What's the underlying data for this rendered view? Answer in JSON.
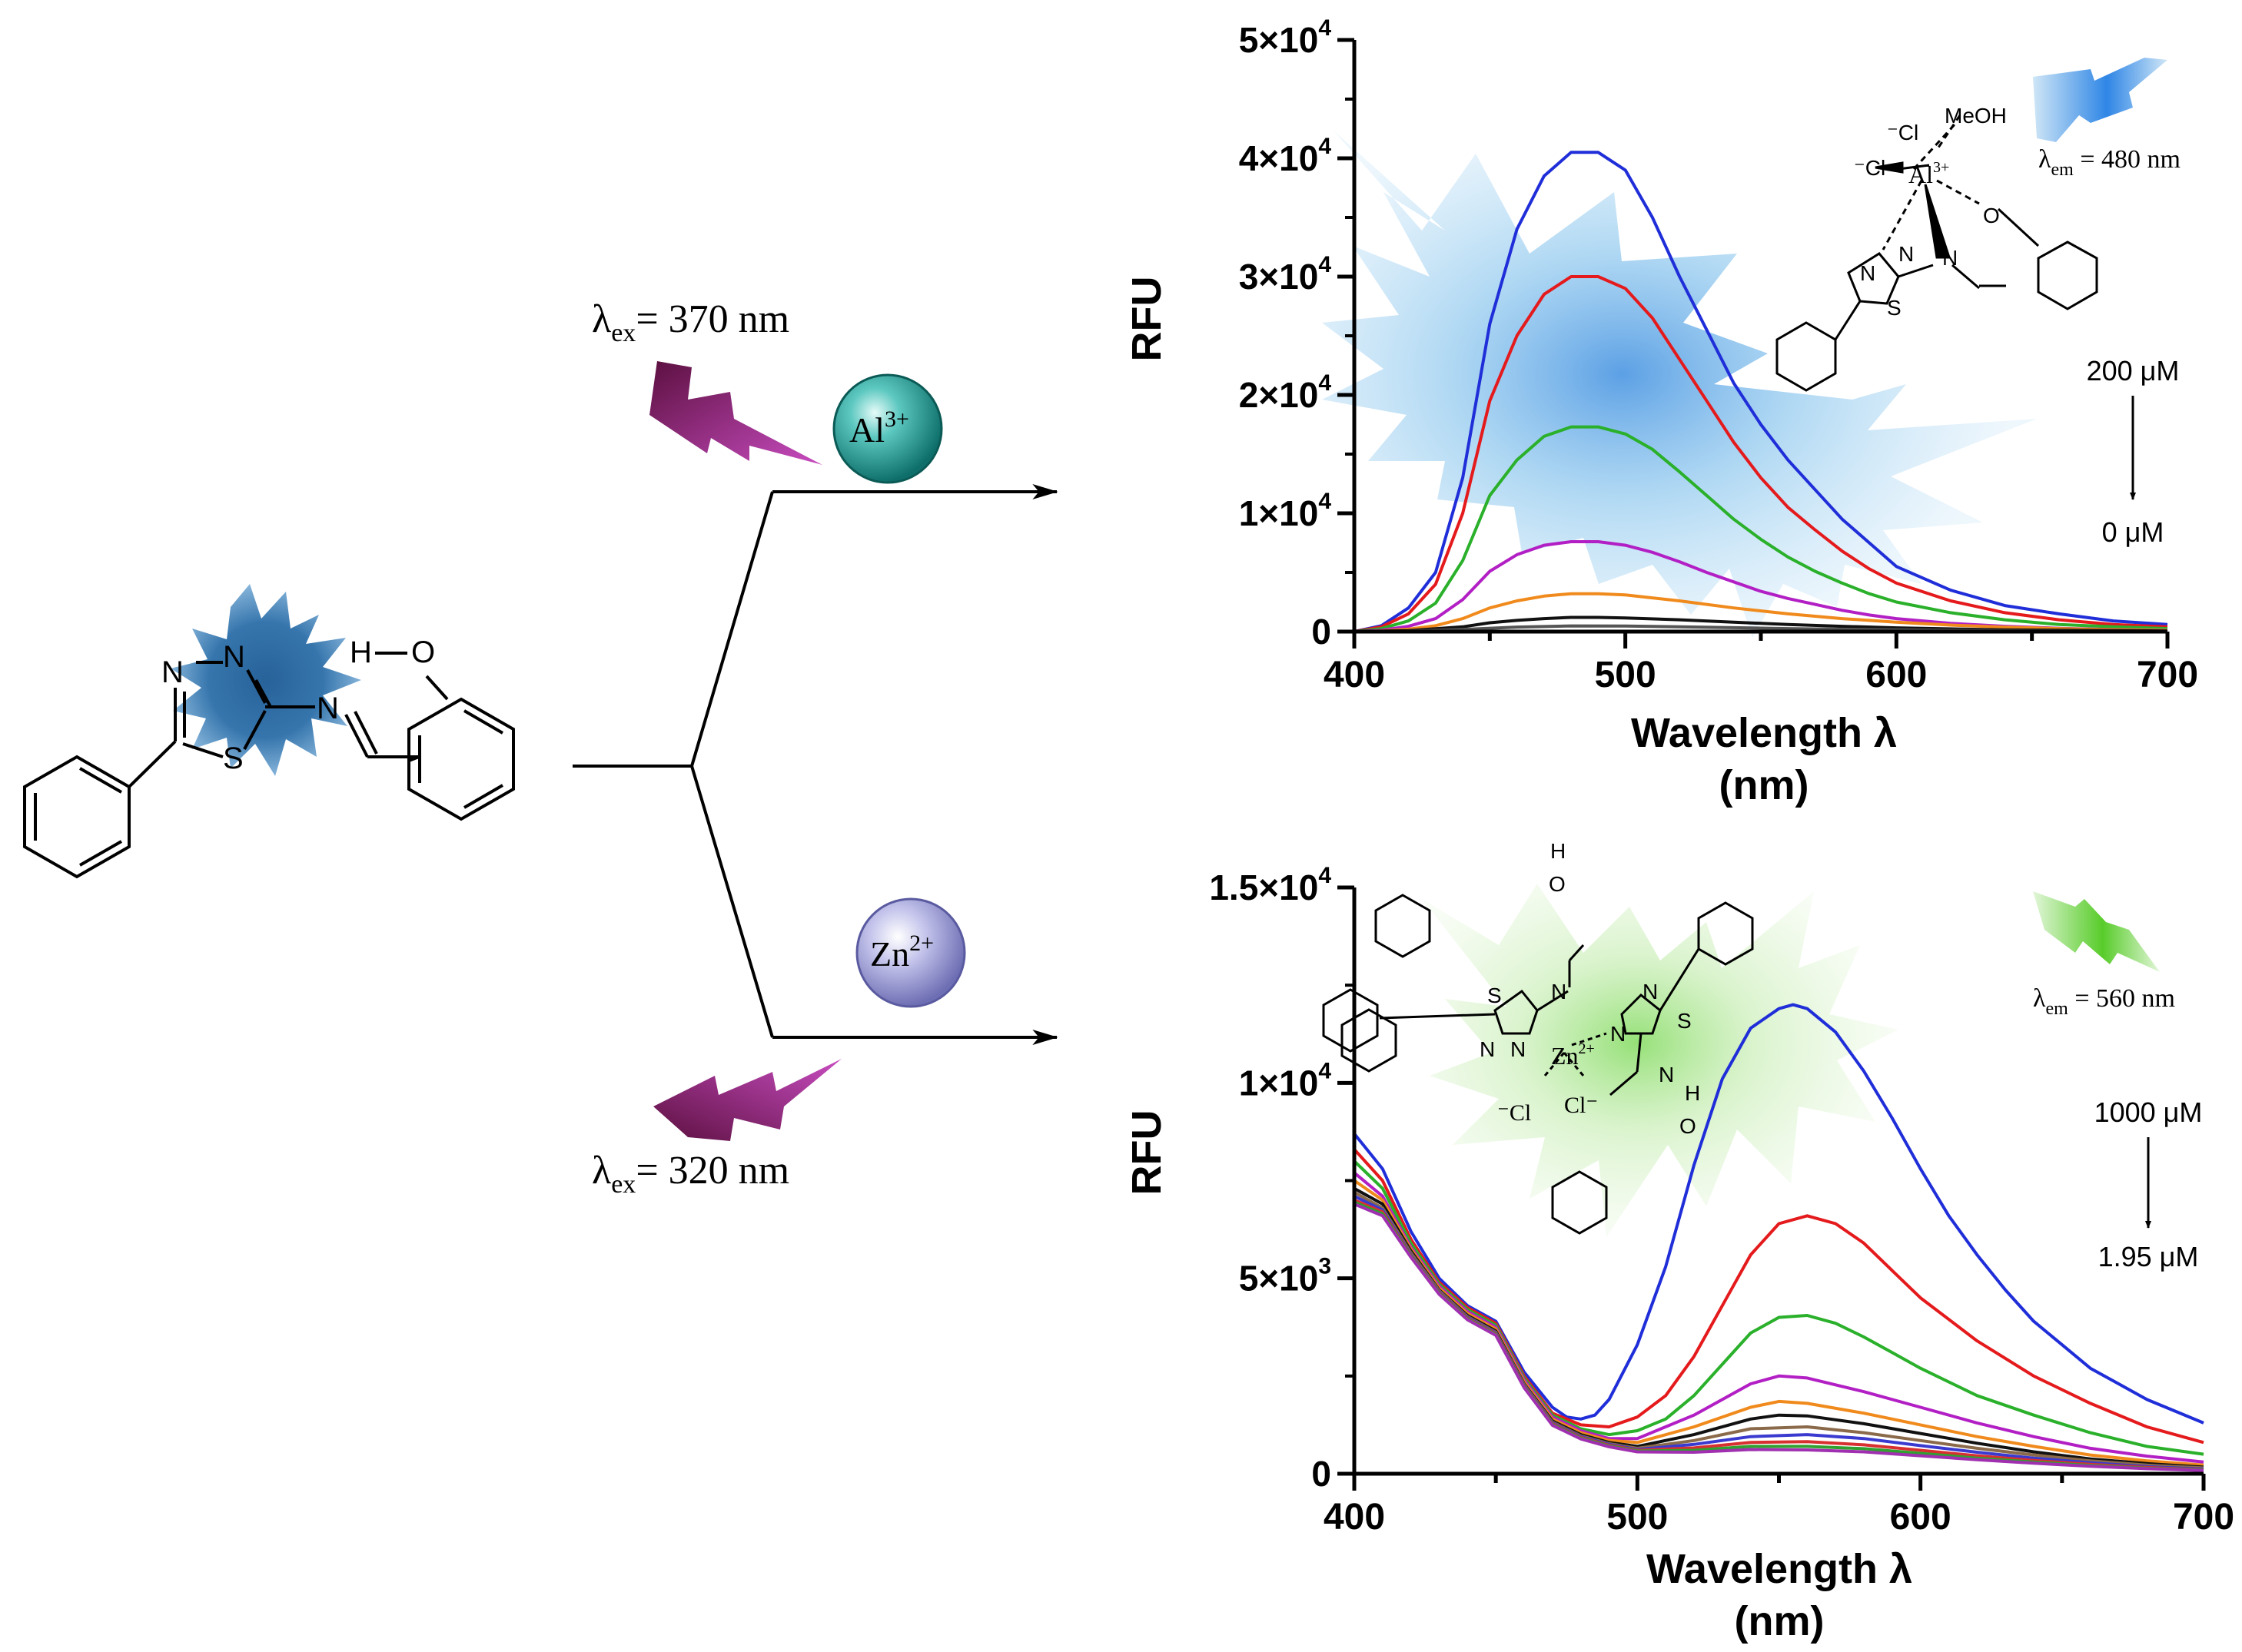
{
  "scheme": {
    "ex_top": {
      "prefix": "λ",
      "sub": "ex",
      "text": "= 370 nm"
    },
    "ex_bottom": {
      "prefix": "λ",
      "sub": "ex",
      "text": "= 320 nm"
    },
    "ion_top": {
      "base": "Al",
      "sup": "3+",
      "color": "#1a9a96"
    },
    "ion_bottom": {
      "base": "Zn",
      "sup": "2+",
      "color": "#9a9ad6"
    },
    "ligand_labels": {
      "n1": "N",
      "n2": "N",
      "n3": "N",
      "s": "S",
      "ho": "H",
      "o": "O"
    }
  },
  "chart_data": [
    {
      "type": "line",
      "xlabel": "Wavelength λ",
      "xlabel_unit": "(nm)",
      "ylabel": "RFU",
      "xlim": [
        400,
        700
      ],
      "ylim": [
        0,
        50000
      ],
      "x_ticks": [
        400,
        500,
        600,
        700
      ],
      "y_ticks": [
        {
          "value": 0,
          "mant": "0",
          "exp": ""
        },
        {
          "value": 10000,
          "mant": "1×10",
          "exp": "4"
        },
        {
          "value": 20000,
          "mant": "2×10",
          "exp": "4"
        },
        {
          "value": 30000,
          "mant": "3×10",
          "exp": "4"
        },
        {
          "value": 40000,
          "mant": "4×10",
          "exp": "4"
        },
        {
          "value": 50000,
          "mant": "5×10",
          "exp": "4"
        }
      ],
      "emission_label": {
        "prefix": "λ",
        "sub": "em",
        "text": " = 480 nm"
      },
      "concentration_top": "200 μM",
      "concentration_bottom": "0 μM",
      "glow_color": "#5aaee0",
      "complex_labels": {
        "meoh": "MeOH",
        "cl1": "⁻Cl",
        "cl2": "⁻Cl",
        "metal": "Al",
        "metal_sup": "3+",
        "o": "O",
        "n1": "N",
        "n2": "N",
        "n3": "N",
        "s": "S"
      },
      "series": [
        {
          "color": "#1f2ed8",
          "x": [
            400,
            410,
            420,
            430,
            440,
            450,
            460,
            470,
            480,
            490,
            500,
            510,
            520,
            530,
            540,
            550,
            560,
            570,
            580,
            590,
            600,
            620,
            640,
            660,
            680,
            700
          ],
          "y": [
            0,
            500,
            2000,
            5000,
            13000,
            26000,
            34000,
            38500,
            40500,
            40500,
            39000,
            35000,
            30000,
            25500,
            21000,
            17500,
            14500,
            12000,
            9500,
            7500,
            5500,
            3500,
            2200,
            1500,
            900,
            600
          ]
        },
        {
          "color": "#e41a1c",
          "x": [
            400,
            410,
            420,
            430,
            440,
            450,
            460,
            470,
            480,
            490,
            500,
            510,
            520,
            530,
            540,
            550,
            560,
            570,
            580,
            590,
            600,
            620,
            640,
            660,
            680,
            700
          ],
          "y": [
            0,
            400,
            1500,
            4000,
            10000,
            19500,
            25000,
            28500,
            30000,
            30000,
            29000,
            26500,
            23000,
            19500,
            16000,
            13000,
            10500,
            8600,
            6800,
            5300,
            4100,
            2600,
            1600,
            1000,
            600,
            400
          ]
        },
        {
          "color": "#2ab02a",
          "x": [
            400,
            410,
            420,
            430,
            440,
            450,
            460,
            470,
            480,
            490,
            500,
            510,
            520,
            530,
            540,
            550,
            560,
            570,
            580,
            590,
            600,
            620,
            640,
            660,
            680,
            700
          ],
          "y": [
            0,
            250,
            900,
            2400,
            6000,
            11500,
            14500,
            16500,
            17300,
            17300,
            16700,
            15400,
            13500,
            11500,
            9500,
            7800,
            6300,
            5100,
            4100,
            3200,
            2500,
            1600,
            1000,
            600,
            400,
            250
          ]
        },
        {
          "color": "#b21fc4",
          "x": [
            400,
            410,
            420,
            430,
            440,
            450,
            460,
            470,
            480,
            490,
            500,
            510,
            520,
            530,
            540,
            550,
            560,
            570,
            580,
            590,
            600,
            620,
            640,
            660,
            680,
            700
          ],
          "y": [
            0,
            120,
            450,
            1100,
            2700,
            5100,
            6500,
            7300,
            7600,
            7600,
            7300,
            6700,
            5900,
            5000,
            4200,
            3400,
            2800,
            2300,
            1800,
            1400,
            1100,
            700,
            450,
            280,
            180,
            120
          ]
        },
        {
          "color": "#f08a1c",
          "x": [
            400,
            410,
            420,
            430,
            440,
            450,
            460,
            470,
            480,
            490,
            500,
            520,
            540,
            560,
            580,
            600,
            620,
            640,
            660,
            680,
            700
          ],
          "y": [
            0,
            60,
            200,
            500,
            1100,
            2000,
            2600,
            3000,
            3200,
            3200,
            3100,
            2600,
            2000,
            1500,
            1100,
            800,
            550,
            380,
            250,
            160,
            100
          ]
        },
        {
          "color": "#111111",
          "x": [
            400,
            420,
            440,
            450,
            460,
            470,
            480,
            490,
            500,
            520,
            540,
            560,
            580,
            600,
            640,
            700
          ],
          "y": [
            0,
            80,
            400,
            750,
            950,
            1100,
            1200,
            1200,
            1150,
            1000,
            800,
            600,
            450,
            320,
            150,
            50
          ]
        },
        {
          "color": "#555555",
          "x": [
            400,
            420,
            440,
            460,
            480,
            500,
            520,
            540,
            560,
            600,
            650,
            700
          ],
          "y": [
            0,
            40,
            180,
            380,
            480,
            470,
            410,
            330,
            250,
            140,
            60,
            20
          ]
        }
      ]
    },
    {
      "type": "line",
      "xlabel": "Wavelength λ",
      "xlabel_unit": "(nm)",
      "ylabel": "RFU",
      "xlim": [
        400,
        700
      ],
      "ylim": [
        0,
        15000
      ],
      "x_ticks": [
        400,
        500,
        600,
        700
      ],
      "y_ticks": [
        {
          "value": 0,
          "mant": "0",
          "exp": ""
        },
        {
          "value": 5000,
          "mant": "5×10",
          "exp": "3"
        },
        {
          "value": 10000,
          "mant": "1×10",
          "exp": "4"
        },
        {
          "value": 15000,
          "mant": "1.5×10",
          "exp": "4"
        }
      ],
      "emission_label": {
        "prefix": "λ",
        "sub": "em",
        "text": " = 560 nm"
      },
      "concentration_top": "1000 μM",
      "concentration_bottom": "1.95 μM",
      "glow_color": "#8fdc6a",
      "complex_labels": {
        "metal": "Zn",
        "metal_sup": "2+",
        "cl1": "⁻Cl",
        "cl2": "Cl⁻",
        "s1": "S",
        "s2": "S",
        "n1": "N",
        "n2": "N",
        "n3": "N",
        "n4": "N",
        "n5": "N",
        "n6": "N",
        "ho1": "H",
        "o1": "O",
        "ho2": "H",
        "o2": "O"
      },
      "series": [
        {
          "color": "#1f2ed8",
          "x": [
            400,
            410,
            420,
            430,
            440,
            450,
            460,
            470,
            475,
            480,
            485,
            490,
            500,
            510,
            520,
            530,
            540,
            550,
            555,
            560,
            570,
            580,
            590,
            600,
            610,
            620,
            630,
            640,
            650,
            660,
            670,
            680,
            690,
            700
          ],
          "y": [
            8700,
            7800,
            6200,
            5000,
            4300,
            3900,
            2600,
            1700,
            1450,
            1400,
            1500,
            1900,
            3300,
            5300,
            7900,
            10100,
            11400,
            11900,
            12000,
            11900,
            11300,
            10300,
            9100,
            7800,
            6600,
            5600,
            4700,
            3900,
            3300,
            2700,
            2300,
            1900,
            1600,
            1300
          ]
        },
        {
          "color": "#e41a1c",
          "x": [
            400,
            410,
            420,
            430,
            440,
            450,
            460,
            470,
            480,
            490,
            500,
            510,
            520,
            530,
            540,
            550,
            560,
            570,
            580,
            590,
            600,
            620,
            640,
            660,
            680,
            700
          ],
          "y": [
            8300,
            7500,
            6000,
            4900,
            4250,
            3850,
            2500,
            1550,
            1250,
            1200,
            1450,
            2000,
            3000,
            4300,
            5600,
            6400,
            6600,
            6400,
            5900,
            5200,
            4500,
            3400,
            2500,
            1800,
            1200,
            800
          ]
        },
        {
          "color": "#2ab02a",
          "x": [
            400,
            410,
            420,
            430,
            440,
            450,
            460,
            470,
            480,
            490,
            500,
            510,
            520,
            530,
            540,
            550,
            560,
            570,
            580,
            590,
            600,
            620,
            640,
            660,
            680,
            700
          ],
          "y": [
            8000,
            7300,
            5900,
            4850,
            4200,
            3800,
            2450,
            1500,
            1150,
            1000,
            1100,
            1400,
            2000,
            2800,
            3600,
            4000,
            4050,
            3850,
            3500,
            3100,
            2700,
            2000,
            1500,
            1050,
            700,
            500
          ]
        },
        {
          "color": "#b21fc4",
          "x": [
            400,
            410,
            420,
            430,
            440,
            450,
            460,
            470,
            480,
            490,
            500,
            520,
            540,
            550,
            560,
            580,
            600,
            620,
            640,
            660,
            680,
            700
          ],
          "y": [
            7700,
            7100,
            5800,
            4800,
            4150,
            3750,
            2400,
            1450,
            1100,
            900,
            900,
            1500,
            2300,
            2500,
            2450,
            2100,
            1700,
            1300,
            950,
            650,
            450,
            300
          ]
        },
        {
          "color": "#f08a1c",
          "x": [
            400,
            410,
            420,
            430,
            440,
            450,
            460,
            470,
            480,
            490,
            500,
            520,
            540,
            550,
            560,
            580,
            600,
            620,
            640,
            660,
            680,
            700
          ],
          "y": [
            7500,
            7000,
            5750,
            4750,
            4100,
            3700,
            2350,
            1400,
            1050,
            850,
            800,
            1200,
            1700,
            1850,
            1800,
            1550,
            1250,
            950,
            700,
            480,
            330,
            220
          ]
        },
        {
          "color": "#111111",
          "x": [
            400,
            410,
            420,
            430,
            440,
            450,
            460,
            470,
            480,
            490,
            500,
            520,
            540,
            550,
            560,
            580,
            600,
            620,
            640,
            660,
            680,
            700
          ],
          "y": [
            7300,
            6900,
            5700,
            4700,
            4050,
            3650,
            2300,
            1350,
            1000,
            800,
            700,
            1000,
            1400,
            1500,
            1480,
            1280,
            1030,
            780,
            560,
            380,
            260,
            170
          ]
        },
        {
          "color": "#8a6a4a",
          "x": [
            400,
            410,
            420,
            430,
            440,
            450,
            460,
            470,
            480,
            490,
            500,
            520,
            540,
            560,
            580,
            600,
            620,
            640,
            660,
            680,
            700
          ],
          "y": [
            7200,
            6800,
            5650,
            4680,
            4020,
            3620,
            2280,
            1320,
            970,
            770,
            650,
            850,
            1150,
            1200,
            1050,
            850,
            650,
            480,
            330,
            220,
            150
          ]
        },
        {
          "color": "#3a3ad0",
          "x": [
            400,
            410,
            420,
            430,
            440,
            450,
            460,
            470,
            480,
            490,
            500,
            520,
            540,
            560,
            580,
            600,
            620,
            640,
            660,
            680,
            700
          ],
          "y": [
            7100,
            6750,
            5600,
            4650,
            4000,
            3600,
            2260,
            1300,
            950,
            750,
            620,
            750,
            950,
            1000,
            900,
            720,
            550,
            400,
            280,
            180,
            120
          ]
        },
        {
          "color": "#d83030",
          "x": [
            400,
            410,
            420,
            430,
            440,
            450,
            460,
            470,
            480,
            490,
            500,
            520,
            540,
            560,
            580,
            600,
            620,
            640,
            660,
            680,
            700
          ],
          "y": [
            7000,
            6700,
            5580,
            4630,
            3980,
            3580,
            2240,
            1280,
            930,
            730,
            600,
            660,
            800,
            820,
            740,
            600,
            460,
            340,
            240,
            160,
            100
          ]
        },
        {
          "color": "#30a030",
          "x": [
            400,
            410,
            420,
            430,
            440,
            450,
            460,
            470,
            480,
            490,
            500,
            520,
            540,
            560,
            580,
            600,
            620,
            640,
            660,
            680,
            700
          ],
          "y": [
            6950,
            6650,
            5560,
            4610,
            3960,
            3560,
            2220,
            1260,
            910,
            710,
            580,
            600,
            700,
            700,
            640,
            520,
            400,
            300,
            210,
            140,
            90
          ]
        },
        {
          "color": "#a030b0",
          "x": [
            400,
            410,
            420,
            430,
            440,
            450,
            460,
            470,
            480,
            490,
            500,
            520,
            540,
            560,
            580,
            600,
            620,
            640,
            660,
            680,
            700
          ],
          "y": [
            6900,
            6600,
            5540,
            4590,
            3940,
            3540,
            2200,
            1240,
            890,
            690,
            560,
            550,
            620,
            610,
            560,
            460,
            360,
            270,
            190,
            130,
            80
          ]
        }
      ]
    }
  ]
}
